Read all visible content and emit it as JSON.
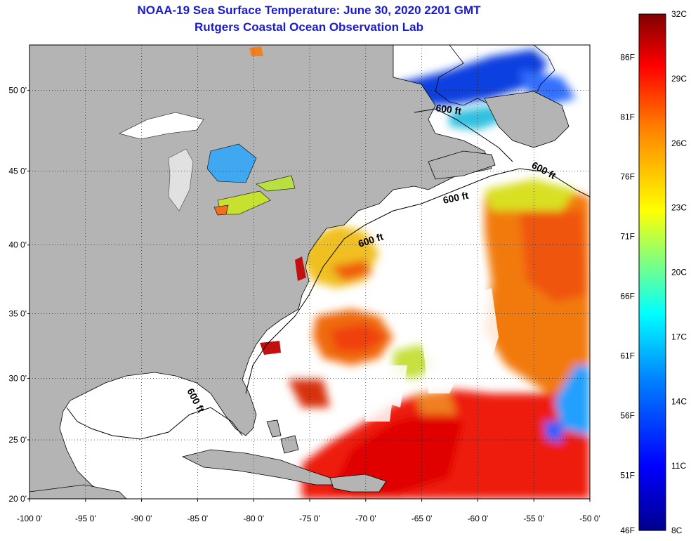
{
  "title": "NOAA-19 Sea Surface Temperature:  June 30, 2020 2201 GMT",
  "subtitle": "Rutgers Coastal Ocean Observation Lab",
  "lat_labels": [
    "50 0'",
    "45 0'",
    "40 0'",
    "35 0'",
    "30 0'",
    "25 0'",
    "20 0'"
  ],
  "lat_values": [
    50,
    45,
    40,
    35,
    30,
    25,
    20
  ],
  "lon_labels": [
    "-100 0'",
    "-95 0'",
    "-90 0'",
    "-85 0'",
    "-80 0'",
    "-75 0'",
    "-70 0'",
    "-65 0'",
    "-60 0'",
    "-55 0'",
    "-50 0'"
  ],
  "lon_values": [
    -100,
    -95,
    -90,
    -85,
    -80,
    -75,
    -70,
    -65,
    -60,
    -55,
    -50
  ],
  "depth_label": "600 ft",
  "colorbar": {
    "celsius": [
      "32C",
      "29C",
      "26C",
      "23C",
      "20C",
      "17C",
      "14C",
      "11C",
      "8C"
    ],
    "fahrenheit": [
      "86F",
      "81F",
      "76F",
      "71F",
      "66F",
      "61F",
      "56F",
      "51F",
      "46F"
    ],
    "min_c": 8,
    "max_c": 32,
    "colors": [
      "#00008f",
      "#0000ff",
      "#0080ff",
      "#00ffff",
      "#80ff80",
      "#ffff00",
      "#ff8000",
      "#ff0000",
      "#800000"
    ]
  },
  "land_color": "#b4b4b4",
  "cloud_color": "#ffffff"
}
